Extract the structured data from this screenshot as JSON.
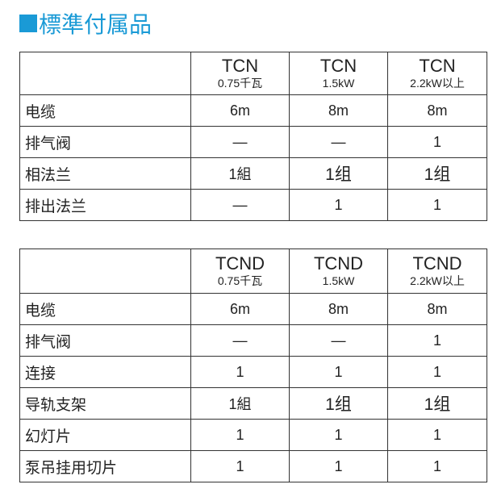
{
  "colors": {
    "accent": "#1a9ad6"
  },
  "title": "標準付属品",
  "tables": [
    {
      "headers": [
        {
          "model": "TCN",
          "power": "0.75千瓦"
        },
        {
          "model": "TCN",
          "power": "1.5kW"
        },
        {
          "model": "TCN",
          "power": "2.2kW以上"
        }
      ],
      "rows": [
        {
          "label": "电缆",
          "values": [
            "6m",
            "8m",
            "8m"
          ]
        },
        {
          "label": "排气阀",
          "values": [
            "—",
            "—",
            "1"
          ]
        },
        {
          "label": "相法兰",
          "values": [
            "1組",
            "1组",
            "1组"
          ]
        },
        {
          "label": "排出法兰",
          "values": [
            "—",
            "1",
            "1"
          ]
        }
      ]
    },
    {
      "headers": [
        {
          "model": "TCND",
          "power": "0.75千瓦"
        },
        {
          "model": "TCND",
          "power": "1.5kW"
        },
        {
          "model": "TCND",
          "power": "2.2kW以上"
        }
      ],
      "rows": [
        {
          "label": "电缆",
          "values": [
            "6m",
            "8m",
            "8m"
          ]
        },
        {
          "label": "排气阀",
          "values": [
            "—",
            "—",
            "1"
          ]
        },
        {
          "label": "连接",
          "values": [
            "1",
            "1",
            "1"
          ]
        },
        {
          "label": "导轨支架",
          "values": [
            "1組",
            "1组",
            "1组"
          ]
        },
        {
          "label": "幻灯片",
          "values": [
            "1",
            "1",
            "1"
          ]
        },
        {
          "label": "泵吊挂用切片",
          "values": [
            "1",
            "1",
            "1"
          ]
        }
      ]
    }
  ]
}
